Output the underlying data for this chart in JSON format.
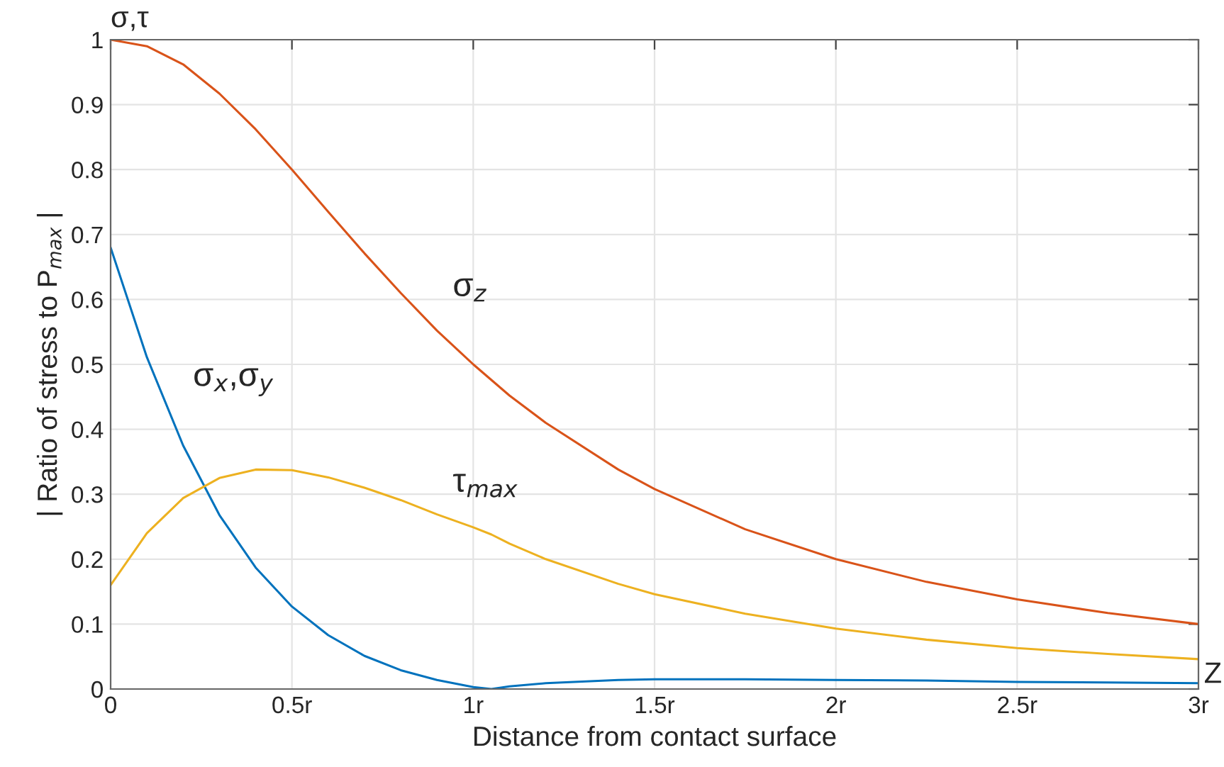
{
  "chart_data": {
    "type": "line",
    "xlabel": "Distance from contact surface",
    "ylabel": "| Ratio of stress to P$_{max}$ |",
    "x": [
      0,
      0.1,
      0.2,
      0.3,
      0.4,
      0.5,
      0.6,
      0.7,
      0.8,
      0.9,
      1.0,
      1.05,
      1.1,
      1.2,
      1.4,
      1.5,
      1.75,
      2,
      2.25,
      2.5,
      2.75,
      3
    ],
    "series": [
      {
        "name": "σ$_{z}$",
        "color": "#d95319",
        "values": [
          1.0,
          0.99,
          0.962,
          0.917,
          0.862,
          0.8,
          0.735,
          0.671,
          0.61,
          0.552,
          0.5,
          0.476,
          0.452,
          0.41,
          0.338,
          0.308,
          0.246,
          0.2,
          0.165,
          0.138,
          0.117,
          0.1
        ]
      },
      {
        "name": "σ$_{x}$,σ$_{y}$",
        "color": "#0072bd",
        "values": [
          0.68,
          0.511,
          0.375,
          0.268,
          0.187,
          0.127,
          0.083,
          0.051,
          0.029,
          0.014,
          0.003,
          0.0,
          0.004,
          0.009,
          0.014,
          0.015,
          0.015,
          0.014,
          0.013,
          0.011,
          0.01,
          0.009
        ]
      },
      {
        "name": "τ$_{max}$",
        "color": "#edb120",
        "values": [
          0.16,
          0.24,
          0.294,
          0.325,
          0.338,
          0.337,
          0.326,
          0.31,
          0.291,
          0.269,
          0.249,
          0.238,
          0.224,
          0.2,
          0.162,
          0.146,
          0.116,
          0.093,
          0.076,
          0.063,
          0.054,
          0.046
        ]
      }
    ],
    "xlim": [
      0,
      3
    ],
    "ylim": [
      0,
      1
    ],
    "xticks": [
      0,
      {
        "value": 0.5,
        "label": "0.5r"
      },
      {
        "value": 1,
        "label": "1r"
      },
      {
        "value": 1.5,
        "label": "1.5r"
      },
      {
        "value": 2,
        "label": "2r"
      },
      {
        "value": 2.5,
        "label": "2.5r"
      },
      {
        "value": 3,
        "label": "3r"
      }
    ],
    "yticks": [
      0,
      0.1,
      0.2,
      0.3,
      0.4,
      0.5,
      0.6,
      0.7,
      0.8,
      0.9,
      1
    ],
    "grid": true,
    "annotations": [
      "σ,τ",
      "Z"
    ]
  }
}
